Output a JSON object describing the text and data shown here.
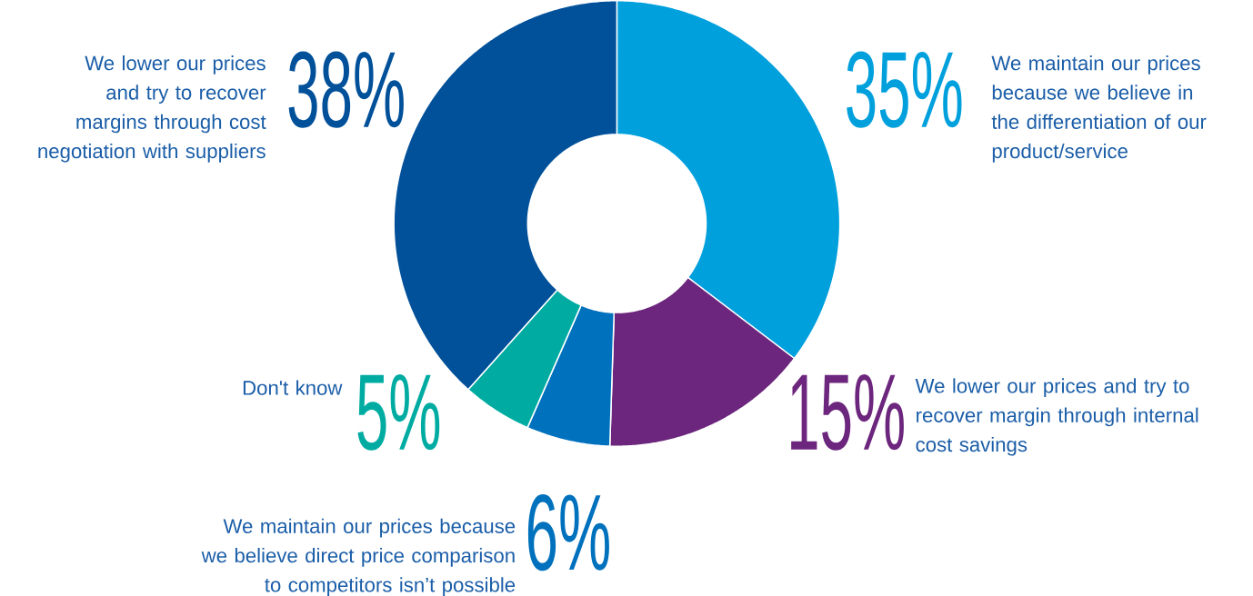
{
  "chart_data": {
    "type": "donut",
    "categories": [
      "We maintain our prices because we believe in the differentiation of our product/service",
      "We lower our prices and try to recover margin through internal cost savings",
      "We maintain our prices because we believe direct price comparison to competitors isn’t possible",
      "Don't know",
      "We lower our prices and try to recover margins through cost negotiation with suppliers"
    ],
    "values": [
      35,
      15,
      6,
      5,
      38
    ],
    "value_labels": [
      "35%",
      "15%",
      "6%",
      "5%",
      "38%"
    ],
    "colors": [
      "#00a0dd",
      "#6c267d",
      "#0071bd",
      "#00aca2",
      "#00509a"
    ]
  }
}
